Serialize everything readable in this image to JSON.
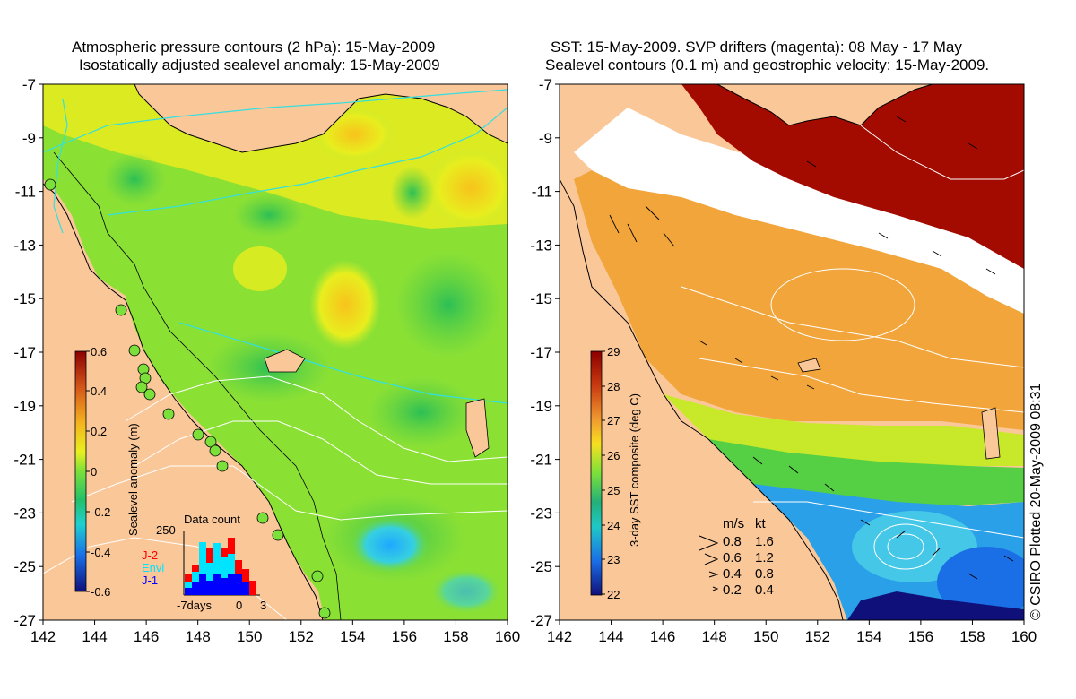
{
  "left_panel": {
    "title_line1": "Atmospheric pressure contours (2 hPa): 15-May-2009",
    "title_line2": "Isostatically adjusted sealevel anomaly: 15-May-2009",
    "colorbar": {
      "label": "Sealevel anomaly (m)",
      "ticks": [
        "0.6",
        "0.4",
        "0.2",
        "0",
        "-0.2",
        "-0.4",
        "-0.6"
      ]
    },
    "data_count": {
      "title": "Data count",
      "y_max_label": "250",
      "x_labels": [
        "-7days",
        "0",
        "3"
      ],
      "legend": [
        {
          "name": "J-2",
          "color": "#ff0000"
        },
        {
          "name": "Envi",
          "color": "#00e5ff"
        },
        {
          "name": "J-1",
          "color": "#0000ff"
        }
      ]
    }
  },
  "right_panel": {
    "title_line1": "SST: 15-May-2009. SVP drifters (magenta): 08 May - 17 May",
    "title_line2": "Sealevel contours (0.1 m) and geostrophic velocity: 15-May-2009.",
    "colorbar": {
      "label": "3-day SST composite (deg C)",
      "ticks": [
        "29",
        "28",
        "27",
        "26",
        "25",
        "24",
        "23",
        "22"
      ]
    },
    "velocity_key": {
      "headers": [
        "m/s",
        "kt"
      ],
      "rows": [
        [
          "0.8",
          "1.6"
        ],
        [
          "0.6",
          "1.2"
        ],
        [
          "0.4",
          "0.8"
        ],
        [
          "0.2",
          "0.4"
        ]
      ]
    }
  },
  "axes": {
    "y_ticks": [
      "-7",
      "-9",
      "-11",
      "-13",
      "-15",
      "-17",
      "-19",
      "-21",
      "-23",
      "-25",
      "-27"
    ],
    "x_ticks": [
      "142",
      "144",
      "146",
      "148",
      "150",
      "152",
      "154",
      "156",
      "158",
      "160"
    ]
  },
  "credit": "© CSIRO Plotted 20-May-2009 08:31",
  "colors": {
    "land": "#fac799",
    "ocean_green": "#7be03a",
    "sst_orange": "#f1a53a",
    "sst_warm_red": "#a30b00",
    "sst_cool_blue": "#2aa0e8"
  }
}
